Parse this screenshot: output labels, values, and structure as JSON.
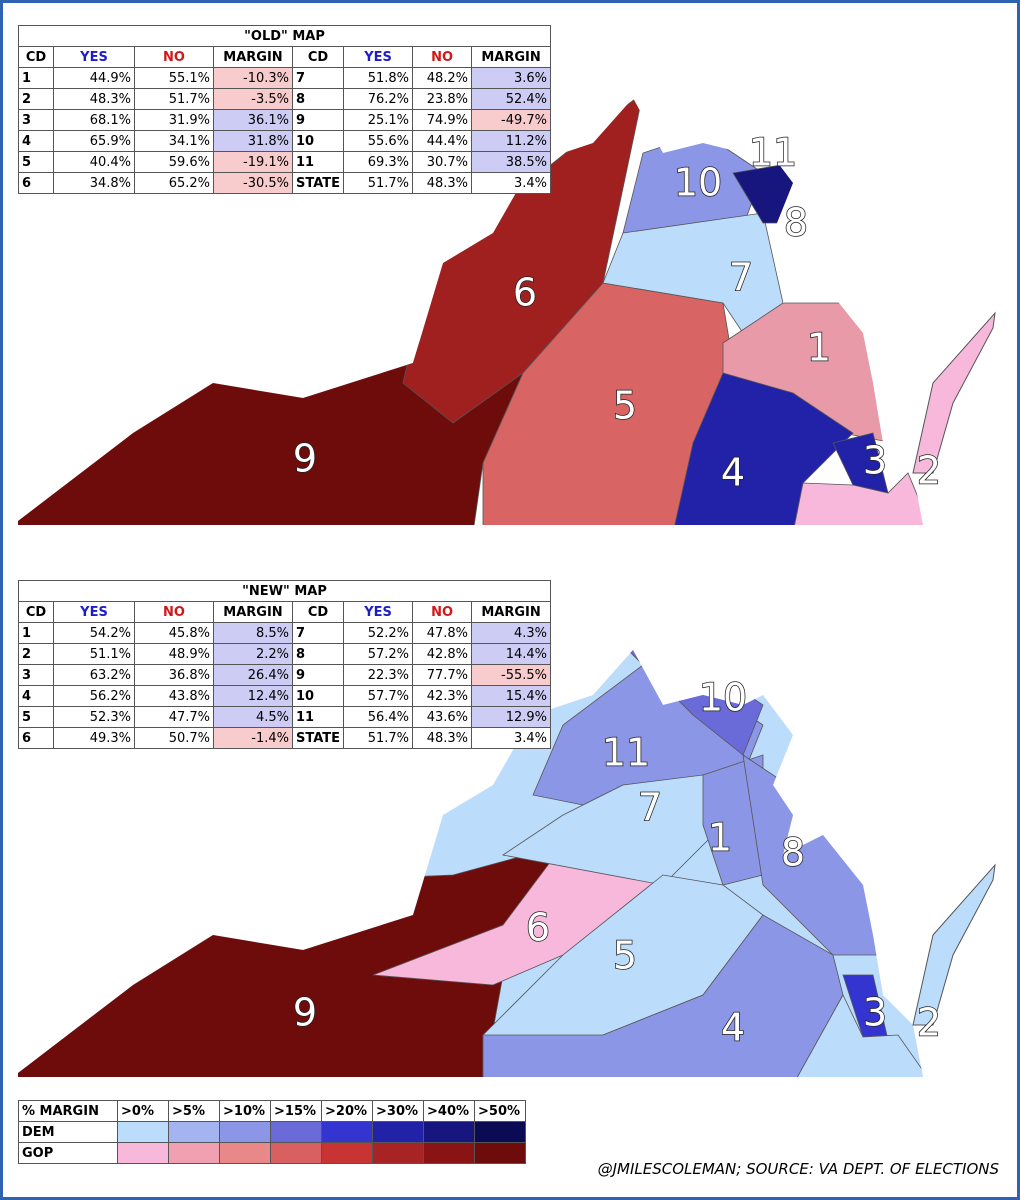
{
  "old_map": {
    "title": "\"OLD\" MAP",
    "header": [
      "CD",
      "YES",
      "NO",
      "MARGIN",
      "CD",
      "YES",
      "NO",
      "MARGIN"
    ],
    "rows": [
      [
        "1",
        "44.9%",
        "55.1%",
        "-10.3%",
        "7",
        "51.8%",
        "48.2%",
        "3.6%"
      ],
      [
        "2",
        "48.3%",
        "51.7%",
        "-3.5%",
        "8",
        "76.2%",
        "23.8%",
        "52.4%"
      ],
      [
        "3",
        "68.1%",
        "31.9%",
        "36.1%",
        "9",
        "25.1%",
        "74.9%",
        "-49.7%"
      ],
      [
        "4",
        "65.9%",
        "34.1%",
        "31.8%",
        "10",
        "55.6%",
        "44.4%",
        "11.2%"
      ],
      [
        "5",
        "40.4%",
        "59.6%",
        "-19.1%",
        "11",
        "69.3%",
        "30.7%",
        "38.5%"
      ],
      [
        "6",
        "34.8%",
        "65.2%",
        "-30.5%",
        "STATE",
        "51.7%",
        "48.3%",
        "3.4%"
      ]
    ],
    "margin_colors": [
      [
        "#f8cccc",
        "#ccccf4"
      ],
      [
        "#f8cccc",
        "#ccccf4"
      ],
      [
        "#ccccf4",
        "#f8cccc"
      ],
      [
        "#ccccf4",
        "#ccccf4"
      ],
      [
        "#f8cccc",
        "#ccccf4"
      ],
      [
        "#f8cccc",
        "#ffffff"
      ]
    ],
    "district_labels": [
      "11",
      "10",
      "8",
      "6",
      "7",
      "1",
      "5",
      "9",
      "4",
      "3",
      "2"
    ]
  },
  "new_map": {
    "title": "\"NEW\" MAP",
    "header": [
      "CD",
      "YES",
      "NO",
      "MARGIN",
      "CD",
      "YES",
      "NO",
      "MARGIN"
    ],
    "rows": [
      [
        "1",
        "54.2%",
        "45.8%",
        "8.5%",
        "7",
        "52.2%",
        "47.8%",
        "4.3%"
      ],
      [
        "2",
        "51.1%",
        "48.9%",
        "2.2%",
        "8",
        "57.2%",
        "42.8%",
        "14.4%"
      ],
      [
        "3",
        "63.2%",
        "36.8%",
        "26.4%",
        "9",
        "22.3%",
        "77.7%",
        "-55.5%"
      ],
      [
        "4",
        "56.2%",
        "43.8%",
        "12.4%",
        "10",
        "57.7%",
        "42.3%",
        "15.4%"
      ],
      [
        "5",
        "52.3%",
        "47.7%",
        "4.5%",
        "11",
        "56.4%",
        "43.6%",
        "12.9%"
      ],
      [
        "6",
        "49.3%",
        "50.7%",
        "-1.4%",
        "STATE",
        "51.7%",
        "48.3%",
        "3.4%"
      ]
    ],
    "margin_colors": [
      [
        "#ccccf4",
        "#ccccf4"
      ],
      [
        "#ccccf4",
        "#ccccf4"
      ],
      [
        "#ccccf4",
        "#f8cccc"
      ],
      [
        "#ccccf4",
        "#ccccf4"
      ],
      [
        "#ccccf4",
        "#ccccf4"
      ],
      [
        "#f8cccc",
        "#ffffff"
      ]
    ],
    "district_labels": [
      "10",
      "11",
      "7",
      "1",
      "8",
      "6",
      "5",
      "9",
      "4",
      "3",
      "2"
    ]
  },
  "legend": {
    "header": [
      "% MARGIN",
      ">0%",
      ">5%",
      ">10%",
      ">15%",
      ">20%",
      ">30%",
      ">40%",
      ">50%"
    ],
    "rows": [
      "DEM",
      "GOP"
    ],
    "dem_colors": [
      "#bcdcfc",
      "#a4b4f0",
      "#8c96e6",
      "#6a6ad8",
      "#3434d0",
      "#2222a8",
      "#16167e",
      "#0a0a55"
    ],
    "gop_colors": [
      "#f8b8dc",
      "#f0a0b0",
      "#e88888",
      "#d86060",
      "#c83434",
      "#a82424",
      "#8a1414",
      "#6e0c0c"
    ]
  },
  "credit": "@JMILESCOLEMAN; SOURCE: VA DEPT. OF ELECTIONS"
}
